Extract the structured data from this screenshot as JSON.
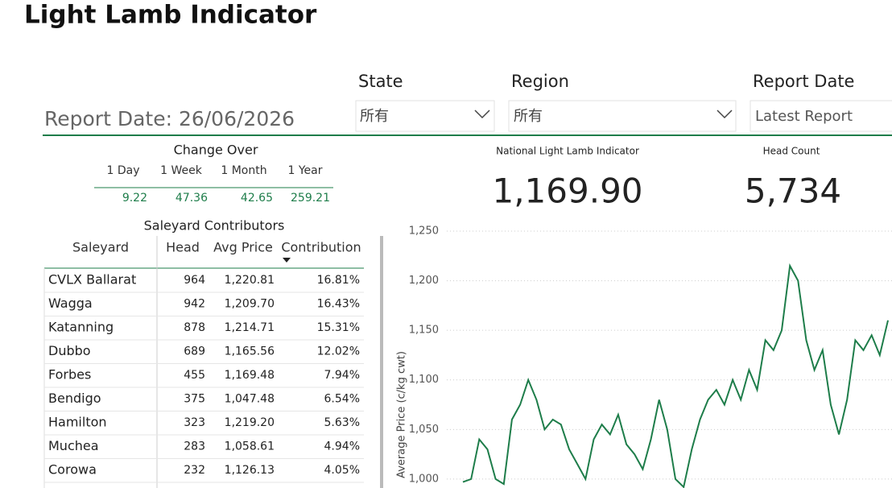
{
  "header": {
    "title": "Light Lamb Indicator"
  },
  "filters": [
    {
      "label": "State",
      "value": "所有"
    },
    {
      "label": "Region",
      "value": "所有"
    },
    {
      "label": "Report Date",
      "value": "Latest Report"
    }
  ],
  "report_date": "Report Date: 26/06/2026",
  "change_over": {
    "title": "Change Over",
    "columns": [
      "1 Day",
      "1 Week",
      "1 Month",
      "1 Year"
    ],
    "values": [
      9.22,
      47.36,
      42.65,
      259.21
    ]
  },
  "kpis": [
    {
      "label": "National Light Lamb Indicator",
      "value": "1,169.90"
    },
    {
      "label": "Head Count",
      "value": "5,734"
    }
  ],
  "table": {
    "title": "Saleyard Contributors",
    "columns": [
      "Saleyard",
      "Head",
      "Avg Price",
      "Contribution"
    ],
    "rows": [
      [
        "CVLX Ballarat",
        "964",
        "1,220.81",
        "16.81%"
      ],
      [
        "Wagga",
        "942",
        "1,209.70",
        "16.43%"
      ],
      [
        "Katanning",
        "878",
        "1,214.71",
        "15.31%"
      ],
      [
        "Dubbo",
        "689",
        "1,165.56",
        "12.02%"
      ],
      [
        "Forbes",
        "455",
        "1,169.48",
        "7.94%"
      ],
      [
        "Bendigo",
        "375",
        "1,047.48",
        "6.54%"
      ],
      [
        "Hamilton",
        "323",
        "1,219.20",
        "5.63%"
      ],
      [
        "Muchea",
        "283",
        "1,058.61",
        "4.94%"
      ],
      [
        "Corowa",
        "232",
        "1,126.13",
        "4.05%"
      ]
    ]
  },
  "chart_data": {
    "type": "line",
    "y_label": "Average Price (c/kg cwt)",
    "color": "#1e7d4a",
    "grid": true,
    "categories": [
      null,
      null,
      null,
      null,
      null,
      null,
      null,
      null,
      null,
      null,
      null,
      null,
      null,
      null,
      null,
      null,
      null,
      null,
      null,
      null,
      null,
      null,
      null,
      null,
      null,
      null,
      null,
      null,
      null,
      null,
      null,
      null,
      null,
      null,
      null,
      null,
      null,
      null,
      null,
      null,
      null,
      null,
      null,
      null,
      null,
      null,
      null,
      null,
      null,
      null,
      null,
      null,
      null
    ],
    "values": [
      997,
      1000,
      1040,
      1030,
      1000,
      995,
      1060,
      1075,
      1100,
      1080,
      1050,
      1060,
      1055,
      1030,
      1015,
      1000,
      1040,
      1055,
      1045,
      1065,
      1035,
      1025,
      1010,
      1040,
      1080,
      1050,
      1000,
      992,
      1030,
      1060,
      1080,
      1090,
      1075,
      1100,
      1080,
      1110,
      1090,
      1140,
      1130,
      1150,
      1215,
      1200,
      1140,
      1110,
      1130,
      1075,
      1045,
      1080,
      1140,
      1130,
      1145,
      1125,
      1160
    ],
    "ylim": [
      991,
      1250
    ],
    "yticks": [
      {
        "value": 1000,
        "label": "1,000"
      },
      {
        "value": 1050,
        "label": "1,050"
      },
      {
        "value": 1100,
        "label": "1,100"
      },
      {
        "value": 1150,
        "label": "1,150"
      },
      {
        "value": 1200,
        "label": "1,200"
      },
      {
        "value": 1250,
        "label": "1,250"
      }
    ]
  }
}
